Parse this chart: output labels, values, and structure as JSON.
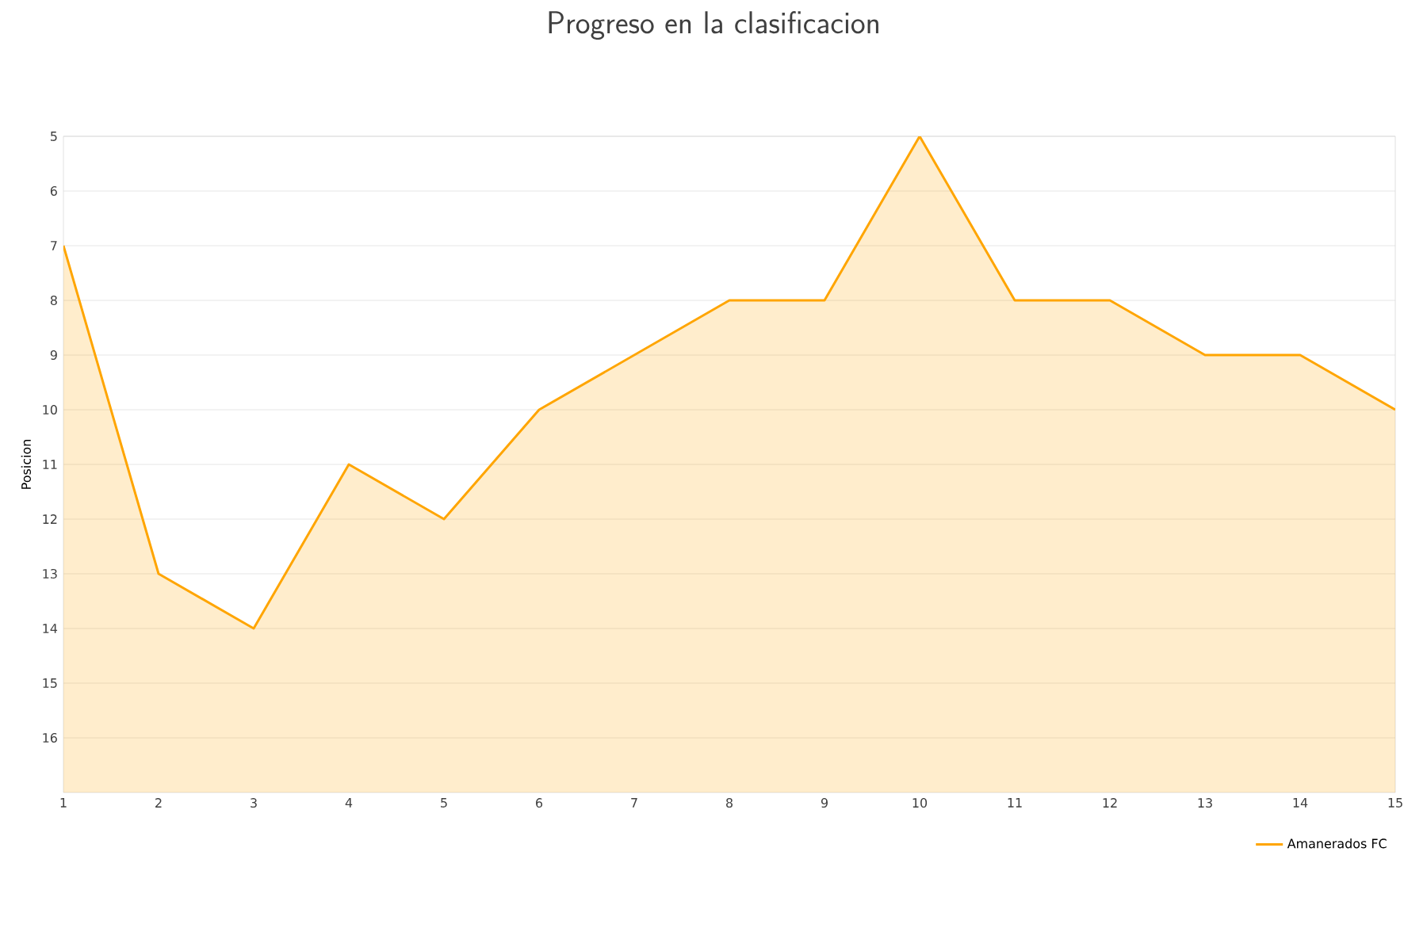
{
  "chart_data": {
    "type": "area",
    "title": "Progreso en la clasificacion",
    "ylabel": "Posicion",
    "x": [
      1,
      2,
      3,
      4,
      5,
      6,
      7,
      8,
      9,
      10,
      11,
      12,
      13,
      14,
      15
    ],
    "series": [
      {
        "name": "Amanerados FC",
        "color": "#ffa500",
        "values": [
          7,
          13,
          14,
          11,
          12,
          10,
          9,
          8,
          8,
          5,
          8,
          8,
          9,
          9,
          10
        ]
      }
    ],
    "xlim": [
      1,
      15
    ],
    "xticks": [
      1,
      2,
      3,
      4,
      5,
      6,
      7,
      8,
      9,
      10,
      11,
      12,
      13,
      14,
      15
    ],
    "ylim": [
      17,
      5
    ],
    "yticks": [
      5,
      6,
      7,
      8,
      9,
      10,
      11,
      12,
      13,
      14,
      15,
      16
    ],
    "grid": "y",
    "legend": "bottom right",
    "marker": "none",
    "line_style": "solid"
  }
}
